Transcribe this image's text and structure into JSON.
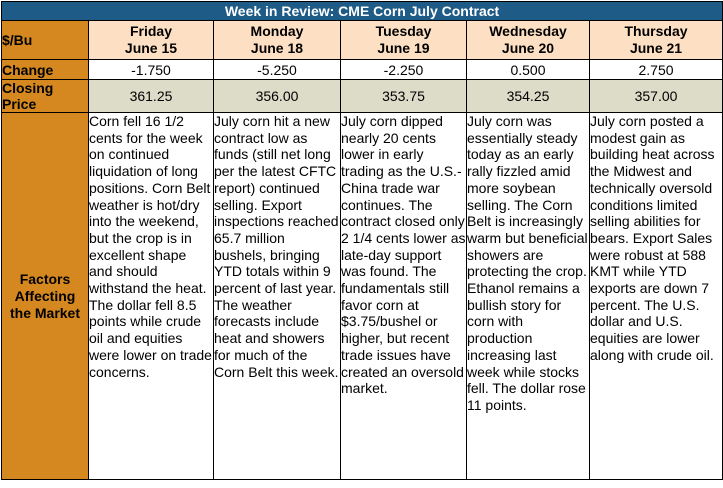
{
  "title": "Week in Review: CME Corn July Contract",
  "unit_label": "$/Bu",
  "row_labels": {
    "change": "Change",
    "closing_line1": "Closing",
    "closing_line2": "Price",
    "factors_line1": "Factors",
    "factors_line2": "Affecting",
    "factors_line3": "the Market"
  },
  "days": [
    {
      "day": "Friday",
      "date": "June 15",
      "change": "-1.750",
      "closing": "361.25",
      "factors": "Corn fell 16 1/2 cents for the week on continued liquidation of long positions. Corn Belt weather is hot/dry into the weekend, but the crop is in excellent shape and should withstand the heat. The dollar fell 8.5 points while crude oil and equities were lower on trade concerns."
    },
    {
      "day": "Monday",
      "date": "June 18",
      "change": "-5.250",
      "closing": "356.00",
      "factors": "July corn hit a new contract low as funds (still net long per the latest CFTC report) continued selling. Export inspections reached 65.7 million bushels, bringing YTD totals within 9 percent of last year. The weather forecasts include heat and showers for much of the Corn Belt this week."
    },
    {
      "day": "Tuesday",
      "date": "June 19",
      "change": "-2.250",
      "closing": "353.75",
      "factors": "July corn dipped nearly 20 cents lower in early trading as the U.S.-China trade war continues. The contract closed only 2 1/4 cents lower as late-day support was found. The fundamentals still favor corn at $3.75/bushel or higher, but recent trade issues have created an oversold market."
    },
    {
      "day": "Wednesday",
      "date": "June 20",
      "change": "0.500",
      "closing": "354.25",
      "factors": "July corn was essentially steady today as an early rally fizzled amid more soybean selling. The Corn Belt is increasingly warm but beneficial showers are protecting the crop. Ethanol remains a bullish story for corn with production increasing last week while stocks fell. The dollar rose 11 points."
    },
    {
      "day": "Thursday",
      "date": "June 21",
      "change": "2.750",
      "closing": "357.00",
      "factors": "July corn posted a modest gain as building heat across the Midwest and technically oversold conditions limited selling abilities for bears. Export Sales were robust at 588 KMT while YTD exports are down 7 percent. The U.S. dollar and U.S. equities are lower along with crude oil."
    }
  ],
  "colors": {
    "title_bg": "#1f5b87",
    "row_header_bg": "#d4881f",
    "day_header_bg": "#fde0c3",
    "closing_row_bg": "#dcdcc8"
  }
}
